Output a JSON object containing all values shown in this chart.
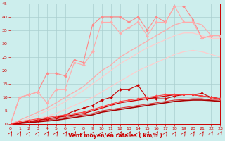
{
  "xlabel": "Vent moyen/en rafales ( km/h )",
  "xlim": [
    0,
    23
  ],
  "ylim": [
    0,
    45
  ],
  "yticks": [
    0,
    5,
    10,
    15,
    20,
    25,
    30,
    35,
    40,
    45
  ],
  "xticks": [
    0,
    1,
    2,
    3,
    4,
    5,
    6,
    7,
    8,
    9,
    10,
    11,
    12,
    13,
    14,
    15,
    16,
    17,
    18,
    19,
    20,
    21,
    22,
    23
  ],
  "bg_color": "#cdeeed",
  "grid_color": "#aacfcf",
  "series": [
    {
      "x": [
        0,
        1,
        2,
        3,
        4,
        5,
        6,
        7,
        8,
        9,
        10,
        11,
        12,
        13,
        14,
        15,
        16,
        17,
        18,
        19,
        20,
        21,
        22,
        23
      ],
      "y": [
        0,
        10,
        11,
        12,
        19,
        19,
        18,
        24,
        23,
        37,
        40,
        40,
        40,
        38,
        40,
        35,
        40,
        38,
        44,
        44,
        39,
        32,
        33,
        33
      ],
      "color": "#ff8888",
      "lw": 0.8,
      "marker": "D",
      "ms": 2.0
    },
    {
      "x": [
        0,
        1,
        2,
        3,
        4,
        5,
        6,
        7,
        8,
        9,
        10,
        11,
        12,
        13,
        14,
        15,
        16,
        17,
        18,
        19,
        20,
        21,
        22,
        23
      ],
      "y": [
        0,
        1.5,
        3,
        4.5,
        6,
        8,
        10,
        12,
        14,
        17,
        20,
        22,
        25,
        27,
        29,
        31,
        33,
        35,
        37,
        38,
        38,
        37,
        33,
        33
      ],
      "color": "#ffaaaa",
      "lw": 0.9,
      "marker": null,
      "ms": 0
    },
    {
      "x": [
        0,
        1,
        2,
        3,
        4,
        5,
        6,
        7,
        8,
        9,
        10,
        11,
        12,
        13,
        14,
        15,
        16,
        17,
        18,
        19,
        20,
        21,
        22,
        23
      ],
      "y": [
        0,
        10,
        11,
        12,
        8,
        13,
        13,
        23,
        22,
        27,
        38,
        38,
        34,
        36,
        38,
        33,
        38,
        38,
        44,
        38,
        38,
        32,
        33,
        33
      ],
      "color": "#ffaaaa",
      "lw": 0.8,
      "marker": "D",
      "ms": 2.0
    },
    {
      "x": [
        0,
        1,
        2,
        3,
        4,
        5,
        6,
        7,
        8,
        9,
        10,
        11,
        12,
        13,
        14,
        15,
        16,
        17,
        18,
        19,
        20,
        21,
        22,
        23
      ],
      "y": [
        0,
        1,
        2,
        3.5,
        5,
        6.5,
        8.5,
        10.5,
        12.5,
        15,
        17.5,
        20,
        22.5,
        24.5,
        26.5,
        28.5,
        30,
        31.5,
        33,
        34,
        34,
        33,
        32,
        32
      ],
      "color": "#ffcccc",
      "lw": 0.9,
      "marker": null,
      "ms": 0
    },
    {
      "x": [
        0,
        1,
        2,
        3,
        4,
        5,
        6,
        7,
        8,
        9,
        10,
        11,
        12,
        13,
        14,
        15,
        16,
        17,
        18,
        19,
        20,
        21,
        22,
        23
      ],
      "y": [
        0,
        0.5,
        1,
        2,
        3,
        4,
        5.5,
        7,
        8.5,
        10,
        12,
        14,
        16,
        18,
        20,
        21.5,
        23,
        24.5,
        26,
        27,
        27.5,
        27,
        26,
        25
      ],
      "color": "#ffcccc",
      "lw": 0.9,
      "marker": null,
      "ms": 0
    },
    {
      "x": [
        0,
        1,
        2,
        3,
        4,
        5,
        6,
        7,
        8,
        9,
        10,
        11,
        12,
        13,
        14,
        15,
        16,
        17,
        18,
        19,
        20,
        21,
        22,
        23
      ],
      "y": [
        0,
        0.5,
        1,
        1.5,
        2,
        2.5,
        3.5,
        5,
        6,
        7,
        9,
        10,
        13,
        13,
        14.5,
        9.5,
        9.5,
        9.5,
        10.5,
        11,
        11,
        11.5,
        10,
        9.5
      ],
      "color": "#cc0000",
      "lw": 0.8,
      "marker": "D",
      "ms": 2.0
    },
    {
      "x": [
        0,
        1,
        2,
        3,
        4,
        5,
        6,
        7,
        8,
        9,
        10,
        11,
        12,
        13,
        14,
        15,
        16,
        17,
        18,
        19,
        20,
        21,
        22,
        23
      ],
      "y": [
        0,
        0.5,
        1,
        1.5,
        2,
        2.5,
        3,
        3.5,
        4,
        5,
        6,
        7,
        8,
        8.5,
        9,
        9.5,
        10,
        10.5,
        11,
        11,
        11,
        10.5,
        10,
        9.5
      ],
      "color": "#cc0000",
      "lw": 1.0,
      "marker": null,
      "ms": 0
    },
    {
      "x": [
        0,
        1,
        2,
        3,
        4,
        5,
        6,
        7,
        8,
        9,
        10,
        11,
        12,
        13,
        14,
        15,
        16,
        17,
        18,
        19,
        20,
        21,
        22,
        23
      ],
      "y": [
        0,
        1,
        1.5,
        2,
        2.5,
        3,
        3.5,
        4,
        4.5,
        5.5,
        6.5,
        7.5,
        8.5,
        9,
        9.5,
        10,
        10.5,
        11,
        11,
        11,
        11,
        10.5,
        10,
        9.5
      ],
      "color": "#ff4444",
      "lw": 0.8,
      "marker": "D",
      "ms": 1.8
    },
    {
      "x": [
        0,
        1,
        2,
        3,
        4,
        5,
        6,
        7,
        8,
        9,
        10,
        11,
        12,
        13,
        14,
        15,
        16,
        17,
        18,
        19,
        20,
        21,
        22,
        23
      ],
      "y": [
        0,
        0.4,
        0.8,
        1.2,
        1.6,
        2,
        2.5,
        3,
        3.5,
        4,
        5,
        5.5,
        6,
        6.5,
        7,
        7.5,
        8,
        8.5,
        9,
        9.2,
        9.5,
        9.5,
        9,
        9
      ],
      "color": "#dd3333",
      "lw": 0.8,
      "marker": null,
      "ms": 0
    },
    {
      "x": [
        0,
        1,
        2,
        3,
        4,
        5,
        6,
        7,
        8,
        9,
        10,
        11,
        12,
        13,
        14,
        15,
        16,
        17,
        18,
        19,
        20,
        21,
        22,
        23
      ],
      "y": [
        0,
        0.3,
        0.6,
        0.9,
        1.2,
        1.5,
        2,
        2.5,
        3,
        3.5,
        4.5,
        5,
        5.5,
        6,
        6.5,
        7,
        7.5,
        8,
        8.5,
        8.8,
        9,
        9,
        8.8,
        8.5
      ],
      "color": "#aa0000",
      "lw": 1.2,
      "marker": null,
      "ms": 0
    }
  ]
}
